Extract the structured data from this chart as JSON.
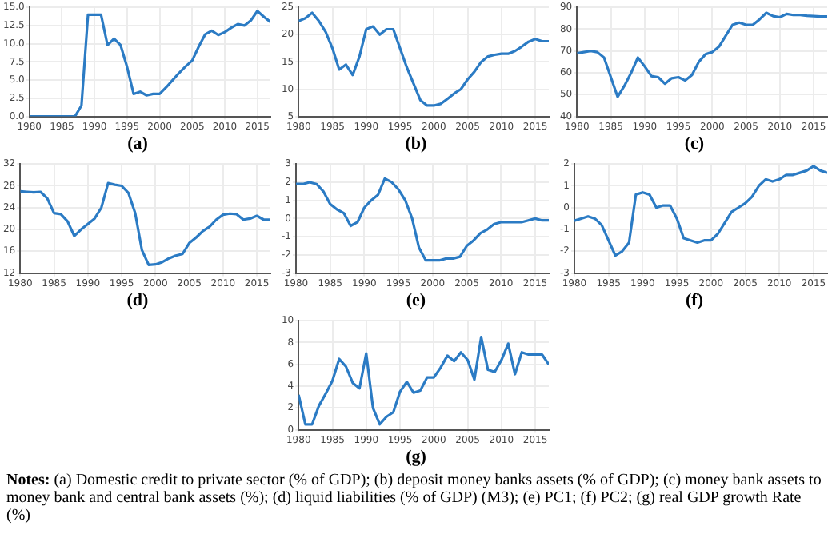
{
  "chart_data": [
    {
      "type": "line",
      "title": "(a)",
      "color": "#2b7bc4",
      "grid": true,
      "xlim": [
        1980,
        2017
      ],
      "xticks": [
        1980,
        1985,
        1990,
        1995,
        2000,
        2005,
        2010,
        2015
      ],
      "ylim": [
        0,
        15
      ],
      "yticks": [
        {
          "value": 0,
          "label": "0.0"
        },
        {
          "value": 2.5,
          "label": "2.5"
        },
        {
          "value": 5,
          "label": "5.0"
        },
        {
          "value": 7.5,
          "label": "7.5"
        },
        {
          "value": 10,
          "label": "10.0"
        },
        {
          "value": 12.5,
          "label": "12.5"
        },
        {
          "value": 15,
          "label": "15.0"
        }
      ],
      "x": [
        1980,
        1981,
        1982,
        1983,
        1984,
        1985,
        1986,
        1987,
        1988,
        1989,
        1990,
        1991,
        1992,
        1993,
        1994,
        1995,
        1996,
        1997,
        1998,
        1999,
        2000,
        2001,
        2002,
        2003,
        2004,
        2005,
        2006,
        2007,
        2008,
        2009,
        2010,
        2011,
        2012,
        2013,
        2014,
        2015,
        2016,
        2017
      ],
      "values": [
        0,
        0,
        0,
        0,
        0,
        0,
        0,
        0,
        1.5,
        14,
        14,
        14,
        9.8,
        10.7,
        9.8,
        6.8,
        3.1,
        3.4,
        2.9,
        3.1,
        3.1,
        4.0,
        5.0,
        6.0,
        6.9,
        7.7,
        9.6,
        11.3,
        11.8,
        11.2,
        11.6,
        12.2,
        12.7,
        12.5,
        13.2,
        14.5,
        13.7,
        13.0
      ]
    },
    {
      "type": "line",
      "title": "(b)",
      "color": "#2b7bc4",
      "grid": true,
      "xlim": [
        1980,
        2017
      ],
      "xticks": [
        1980,
        1985,
        1990,
        1995,
        2000,
        2005,
        2010,
        2015
      ],
      "ylim": [
        5,
        25
      ],
      "yticks": [
        5,
        10,
        15,
        20,
        25
      ],
      "x": [
        1980,
        1981,
        1982,
        1983,
        1984,
        1985,
        1986,
        1987,
        1988,
        1989,
        1990,
        1991,
        1992,
        1993,
        1994,
        1995,
        1996,
        1997,
        1998,
        1999,
        2000,
        2001,
        2002,
        2003,
        2004,
        2005,
        2006,
        2007,
        2008,
        2009,
        2010,
        2011,
        2012,
        2013,
        2014,
        2015,
        2016,
        2017
      ],
      "values": [
        22.5,
        23,
        24,
        22.5,
        20.5,
        17.5,
        13.6,
        14.5,
        12.6,
        16,
        21,
        21.5,
        20,
        21,
        21,
        17.5,
        14,
        11,
        8,
        7,
        7,
        7.3,
        8.2,
        9.2,
        10,
        11.8,
        13.2,
        15,
        16,
        16.3,
        16.5,
        16.5,
        17,
        17.8,
        18.7,
        19.2,
        18.8,
        18.8
      ]
    },
    {
      "type": "line",
      "title": "(c)",
      "color": "#2b7bc4",
      "grid": true,
      "xlim": [
        1980,
        2017
      ],
      "xticks": [
        1980,
        1985,
        1990,
        1995,
        2000,
        2005,
        2010,
        2015
      ],
      "ylim": [
        40,
        90
      ],
      "yticks": [
        40,
        50,
        60,
        70,
        80,
        90
      ],
      "x": [
        1980,
        1981,
        1982,
        1983,
        1984,
        1985,
        1986,
        1987,
        1988,
        1989,
        1990,
        1991,
        1992,
        1993,
        1994,
        1995,
        1996,
        1997,
        1998,
        1999,
        2000,
        2001,
        2002,
        2003,
        2004,
        2005,
        2006,
        2007,
        2008,
        2009,
        2010,
        2011,
        2012,
        2013,
        2014,
        2015,
        2016,
        2017
      ],
      "values": [
        69,
        69.5,
        70,
        69.5,
        67,
        58,
        49,
        54,
        60,
        67,
        63,
        58.5,
        58,
        55,
        57.5,
        58,
        56.5,
        59,
        65,
        68.5,
        69.5,
        72,
        77,
        82,
        83,
        82,
        82,
        84.5,
        87.5,
        86,
        85.5,
        87,
        86.5,
        86.5,
        86.2,
        86,
        85.8,
        85.8
      ]
    },
    {
      "type": "line",
      "title": "(d)",
      "color": "#2b7bc4",
      "grid": true,
      "xlim": [
        1980,
        2017
      ],
      "xticks": [
        1980,
        1985,
        1990,
        1995,
        2000,
        2005,
        2010,
        2015
      ],
      "ylim": [
        12,
        32
      ],
      "yticks": [
        12,
        16,
        20,
        24,
        28,
        32
      ],
      "x": [
        1980,
        1981,
        1982,
        1983,
        1984,
        1985,
        1986,
        1987,
        1988,
        1989,
        1990,
        1991,
        1992,
        1993,
        1994,
        1995,
        1996,
        1997,
        1998,
        1999,
        2000,
        2001,
        2002,
        2003,
        2004,
        2005,
        2006,
        2007,
        2008,
        2009,
        2010,
        2011,
        2012,
        2013,
        2014,
        2015,
        2016,
        2017
      ],
      "values": [
        27,
        26.9,
        26.8,
        26.9,
        25.7,
        23,
        22.8,
        21.5,
        18.8,
        20,
        21,
        22,
        24,
        28.5,
        28.2,
        28,
        26.7,
        23,
        16.2,
        13.5,
        13.6,
        14,
        14.7,
        15.2,
        15.5,
        17.5,
        18.5,
        19.7,
        20.5,
        21.8,
        22.7,
        22.9,
        22.8,
        21.8,
        22,
        22.5,
        21.8,
        21.8
      ]
    },
    {
      "type": "line",
      "title": "(e)",
      "color": "#2b7bc4",
      "grid": true,
      "xlim": [
        1980,
        2017
      ],
      "xticks": [
        1980,
        1985,
        1990,
        1995,
        2000,
        2005,
        2010,
        2015
      ],
      "ylim": [
        -3,
        3
      ],
      "yticks": [
        -3,
        -2,
        -1,
        0,
        1,
        2,
        3
      ],
      "x": [
        1980,
        1981,
        1982,
        1983,
        1984,
        1985,
        1986,
        1987,
        1988,
        1989,
        1990,
        1991,
        1992,
        1993,
        1994,
        1995,
        1996,
        1997,
        1998,
        1999,
        2000,
        2001,
        2002,
        2003,
        2004,
        2005,
        2006,
        2007,
        2008,
        2009,
        2010,
        2011,
        2012,
        2013,
        2014,
        2015,
        2016,
        2017
      ],
      "values": [
        1.9,
        1.9,
        2.0,
        1.9,
        1.5,
        0.8,
        0.5,
        0.3,
        -0.4,
        -0.2,
        0.6,
        1.0,
        1.3,
        2.2,
        2.0,
        1.6,
        1.0,
        0,
        -1.6,
        -2.3,
        -2.3,
        -2.3,
        -2.2,
        -2.2,
        -2.1,
        -1.5,
        -1.2,
        -0.8,
        -0.6,
        -0.3,
        -0.2,
        -0.2,
        -0.2,
        -0.2,
        -0.1,
        0,
        -0.1,
        -0.1
      ]
    },
    {
      "type": "line",
      "title": "(f)",
      "color": "#2b7bc4",
      "grid": true,
      "xlim": [
        1980,
        2017
      ],
      "xticks": [
        1980,
        1985,
        1990,
        1995,
        2000,
        2005,
        2010,
        2015
      ],
      "ylim": [
        -3,
        2
      ],
      "yticks": [
        -3,
        -2,
        -1,
        0,
        1,
        2
      ],
      "x": [
        1980,
        1981,
        1982,
        1983,
        1984,
        1985,
        1986,
        1987,
        1988,
        1989,
        1990,
        1991,
        1992,
        1993,
        1994,
        1995,
        1996,
        1997,
        1998,
        1999,
        2000,
        2001,
        2002,
        2003,
        2004,
        2005,
        2006,
        2007,
        2008,
        2009,
        2010,
        2011,
        2012,
        2013,
        2014,
        2015,
        2016,
        2017
      ],
      "values": [
        -0.6,
        -0.5,
        -0.4,
        -0.5,
        -0.8,
        -1.5,
        -2.2,
        -2.0,
        -1.6,
        0.6,
        0.7,
        0.6,
        0,
        0.1,
        0.1,
        -0.5,
        -1.4,
        -1.5,
        -1.6,
        -1.5,
        -1.5,
        -1.2,
        -0.7,
        -0.2,
        0,
        0.2,
        0.5,
        1.0,
        1.3,
        1.2,
        1.3,
        1.5,
        1.5,
        1.6,
        1.7,
        1.9,
        1.7,
        1.6
      ]
    },
    {
      "type": "line",
      "title": "(g)",
      "color": "#2b7bc4",
      "grid": true,
      "xlim": [
        1980,
        2017
      ],
      "xticks": [
        1980,
        1985,
        1990,
        1995,
        2000,
        2005,
        2010,
        2015
      ],
      "ylim": [
        0,
        10
      ],
      "yticks": [
        0,
        2,
        4,
        6,
        8,
        10
      ],
      "x": [
        1980,
        1981,
        1982,
        1983,
        1984,
        1985,
        1986,
        1987,
        1988,
        1989,
        1990,
        1991,
        1992,
        1993,
        1994,
        1995,
        1996,
        1997,
        1998,
        1999,
        2000,
        2001,
        2002,
        2003,
        2004,
        2005,
        2006,
        2007,
        2008,
        2009,
        2010,
        2011,
        2012,
        2013,
        2014,
        2015,
        2016,
        2017
      ],
      "values": [
        3.2,
        0.5,
        0.5,
        2.2,
        3.3,
        4.5,
        6.5,
        5.8,
        4.3,
        3.8,
        7,
        2,
        0.5,
        1.2,
        1.6,
        3.5,
        4.4,
        3.4,
        3.6,
        4.8,
        4.8,
        5.7,
        6.8,
        6.3,
        7.1,
        6.4,
        4.6,
        8.5,
        5.5,
        5.3,
        6.4,
        7.9,
        5.1,
        7.1,
        6.9,
        6.9,
        6.9,
        6.0
      ],
      "annotations": [
        "Notes: (a) Domestic credit to private sector  (% of GDP); (b) deposit money banks assets (% of GDP); (c) money bank assets to money bank and central bank assets (%); (d) liquid liabilities (% of GDP) (M3); (e) PC1; (f) PC2; (g) real GDP growth Rate (%)"
      ]
    }
  ]
}
